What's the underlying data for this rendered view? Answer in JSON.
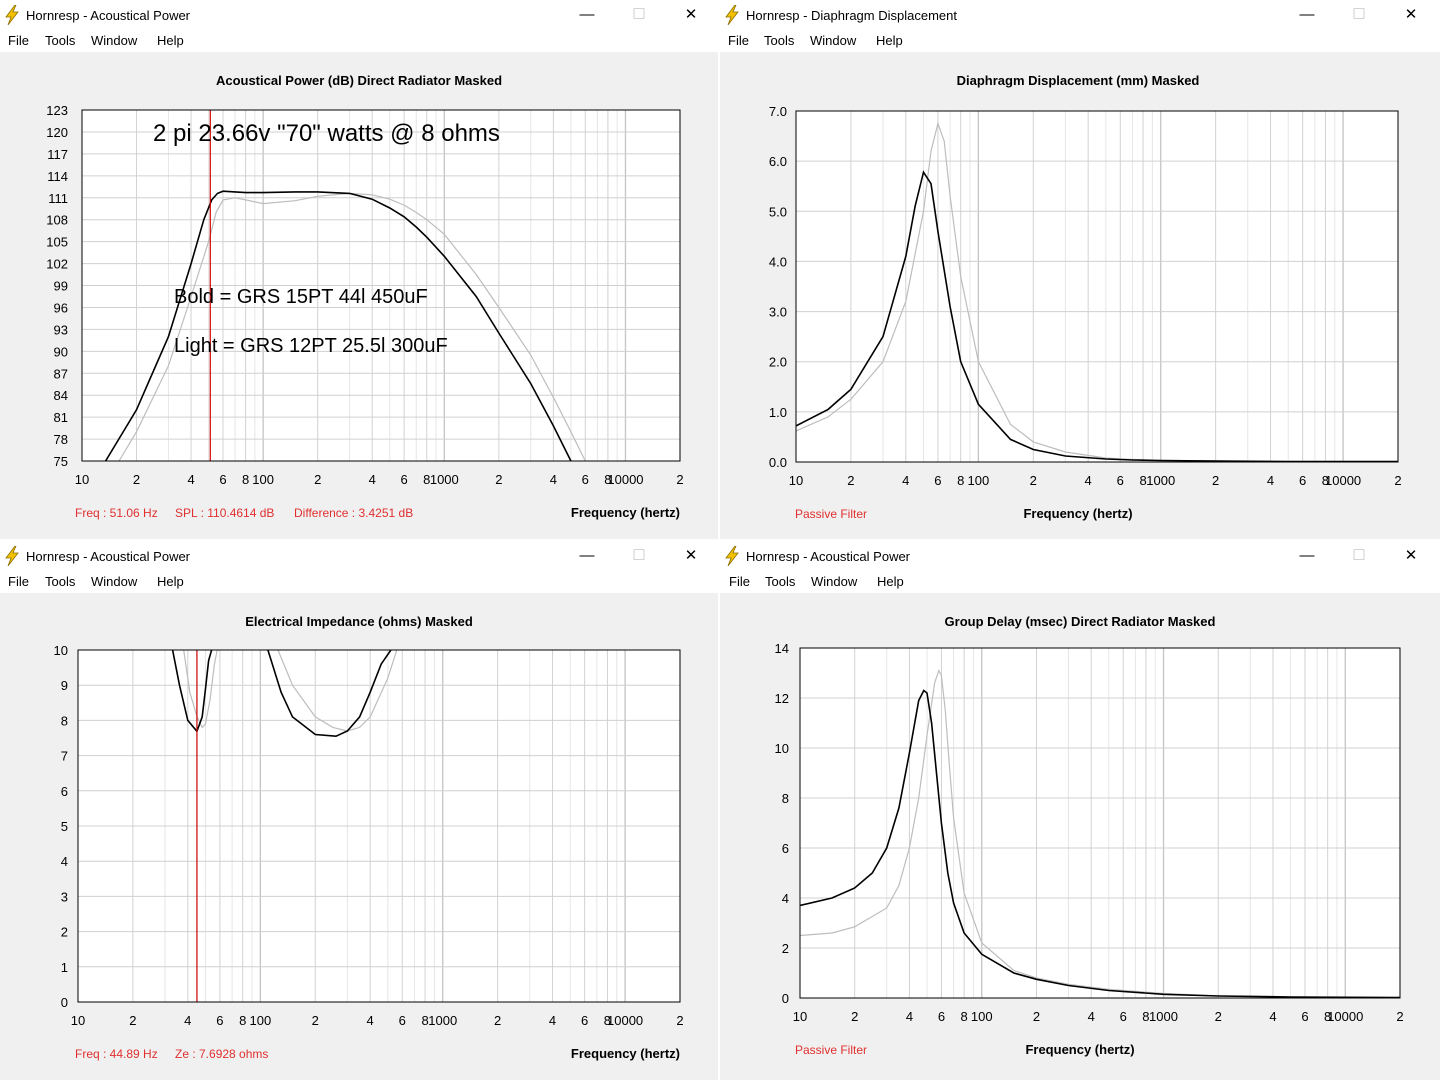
{
  "windows": [
    {
      "title": "Hornresp - Acoustical Power",
      "menu": [
        "File",
        "Tools",
        "Window",
        "Help"
      ],
      "heading": "Acoustical Power (dB)   Direct Radiator   Masked",
      "status": [
        "Freq : 51.06 Hz",
        "SPL : 110.4614 dB",
        "Difference : 3.4251 dB"
      ],
      "x_label": "Frequency (hertz)",
      "annotations": [
        "2 pi  23.66v  \"70\" watts @ 8 ohms",
        "Bold = GRS 15PT 44l 450uF",
        "Light = GRS 12PT 25.5l 300uF"
      ]
    },
    {
      "title": "Hornresp - Diaphragm Displacement",
      "menu": [
        "File",
        "Tools",
        "Window",
        "Help"
      ],
      "heading": "Diaphragm Displacement (mm)   Masked",
      "status": [
        "Passive Filter"
      ],
      "x_label": "Frequency (hertz)",
      "annotations": []
    },
    {
      "title": "Hornresp - Acoustical Power",
      "menu": [
        "File",
        "Tools",
        "Window",
        "Help"
      ],
      "heading": "Electrical Impedance (ohms)   Masked",
      "status": [
        "Freq : 44.89 Hz",
        "Ze : 7.6928 ohms"
      ],
      "x_label": "Frequency (hertz)",
      "annotations": []
    },
    {
      "title": "Hornresp - Acoustical Power",
      "menu": [
        "File",
        "Tools",
        "Window",
        "Help"
      ],
      "heading": "Group Delay (msec)   Direct Radiator   Masked",
      "status": [
        "Passive Filter"
      ],
      "x_label": "Frequency (hertz)",
      "annotations": []
    }
  ],
  "window_controls": {
    "minimize": "—",
    "maximize": "☐",
    "close": "✕"
  },
  "colors": {
    "bold_trace": "#000000",
    "light_trace": "#bdbdbd",
    "marker": "#cc0000",
    "status_text": "#e03030"
  },
  "x_tick_labels": [
    "10",
    "2",
    "4",
    "6",
    "8",
    "100",
    "2",
    "4",
    "6",
    "8",
    "1000",
    "2",
    "4",
    "6",
    "8",
    "10000",
    "2"
  ],
  "chart_data": [
    {
      "type": "line",
      "title": "Acoustical Power (dB)   Direct Radiator   Masked",
      "xlabel": "Frequency (hertz)",
      "ylabel": "",
      "x_scale": "log",
      "xlim": [
        10,
        20000
      ],
      "ylim": [
        75,
        123
      ],
      "y_ticks": [
        "123",
        "120",
        "117",
        "114",
        "111",
        "108",
        "105",
        "102",
        "99",
        "96",
        "93",
        "90",
        "87",
        "84",
        "81",
        "78",
        "75"
      ],
      "marker_x": 51.06,
      "series": [
        {
          "name": "Bold = GRS 15PT 44l 450uF",
          "style": "bold",
          "x": [
            13.5,
            20,
            30,
            40,
            47,
            52,
            56,
            60,
            70,
            80,
            100,
            150,
            200,
            300,
            400,
            500,
            600,
            700,
            800,
            1000,
            1500,
            2000,
            3000,
            4000,
            5000
          ],
          "y": [
            75,
            82,
            92,
            102,
            108,
            110.7,
            111.6,
            111.9,
            111.8,
            111.7,
            111.7,
            111.8,
            111.8,
            111.6,
            110.8,
            109.6,
            108.4,
            107,
            105.6,
            103,
            97.5,
            92.5,
            85.6,
            79.8,
            75
          ]
        },
        {
          "name": "Light = GRS 12PT 25.5l 300uF",
          "style": "light",
          "x": [
            16,
            20,
            30,
            40,
            50,
            55,
            60,
            70,
            80,
            100,
            150,
            200,
            300,
            400,
            500,
            600,
            700,
            800,
            1000,
            1500,
            2000,
            3000,
            4000,
            5000,
            6000
          ],
          "y": [
            75,
            79,
            88,
            97.5,
            105,
            109,
            110.7,
            111,
            110.7,
            110.2,
            110.6,
            111.2,
            111.6,
            111.4,
            110.8,
            110,
            109,
            108,
            106,
            100.5,
            96,
            89.5,
            83.7,
            79,
            75
          ]
        }
      ]
    },
    {
      "type": "line",
      "title": "Diaphragm Displacement (mm)   Masked",
      "xlabel": "Frequency (hertz)",
      "ylabel": "",
      "x_scale": "log",
      "xlim": [
        10,
        20000
      ],
      "ylim": [
        0,
        7
      ],
      "y_ticks": [
        "7.0",
        "6.0",
        "5.0",
        "4.0",
        "3.0",
        "2.0",
        "1.0",
        "0.0"
      ],
      "series": [
        {
          "name": "Bold = GRS 15PT 44l 450uF",
          "style": "bold",
          "x": [
            10,
            15,
            20,
            30,
            40,
            45,
            50,
            55,
            60,
            70,
            80,
            100,
            150,
            200,
            300,
            500,
            700,
            1000,
            2000,
            5000,
            10000,
            20000
          ],
          "y": [
            0.72,
            1.05,
            1.45,
            2.5,
            4.1,
            5.1,
            5.78,
            5.55,
            4.6,
            3.1,
            2.0,
            1.15,
            0.45,
            0.25,
            0.12,
            0.06,
            0.04,
            0.03,
            0.02,
            0.01,
            0.01,
            0.01
          ]
        },
        {
          "name": "Light = GRS 12PT 25.5l 300uF",
          "style": "light",
          "x": [
            10,
            15,
            20,
            30,
            40,
            50,
            55,
            60,
            65,
            70,
            80,
            100,
            150,
            200,
            300,
            500,
            700,
            1000,
            2000,
            5000,
            10000,
            20000
          ],
          "y": [
            0.62,
            0.9,
            1.25,
            2.0,
            3.2,
            5.0,
            6.2,
            6.75,
            6.4,
            5.3,
            3.7,
            2.0,
            0.75,
            0.4,
            0.2,
            0.08,
            0.05,
            0.03,
            0.02,
            0.01,
            0.01,
            0.01
          ]
        }
      ]
    },
    {
      "type": "line",
      "title": "Electrical Impedance (ohms)   Masked",
      "xlabel": "Frequency (hertz)",
      "ylabel": "",
      "x_scale": "log",
      "xlim": [
        10,
        20000
      ],
      "ylim": [
        0,
        10
      ],
      "y_ticks": [
        "10",
        "9",
        "8",
        "7",
        "6",
        "5",
        "4",
        "3",
        "2",
        "1",
        "0"
      ],
      "marker_x": 44.89,
      "series": [
        {
          "name": "Bold = GRS 15PT 44l 450uF",
          "style": "bold",
          "x": [
            33,
            36,
            40,
            44.9,
            48,
            50,
            52,
            54,
            null,
            110,
            130,
            150,
            200,
            260,
            300,
            350,
            400,
            460,
            520
          ],
          "y": [
            10,
            9,
            8,
            7.69,
            8.1,
            8.9,
            9.7,
            10,
            null,
            10,
            8.8,
            8.1,
            7.6,
            7.55,
            7.7,
            8.1,
            8.8,
            9.6,
            10
          ]
        },
        {
          "name": "Light = GRS 12PT 25.5l 300uF",
          "style": "light",
          "x": [
            38,
            41,
            45,
            48,
            50,
            53,
            56,
            58,
            null,
            125,
            150,
            200,
            250,
            300,
            350,
            400,
            500,
            560
          ],
          "y": [
            10,
            8.8,
            8.1,
            7.8,
            7.9,
            8.6,
            9.6,
            10,
            null,
            10,
            9,
            8.1,
            7.8,
            7.7,
            7.8,
            8.1,
            9.2,
            10
          ]
        }
      ]
    },
    {
      "type": "line",
      "title": "Group Delay (msec)   Direct Radiator   Masked",
      "xlabel": "Frequency (hertz)",
      "ylabel": "",
      "x_scale": "log",
      "xlim": [
        10,
        20000
      ],
      "ylim": [
        0,
        14
      ],
      "y_ticks": [
        "14",
        "12",
        "10",
        "8",
        "6",
        "4",
        "2",
        "0"
      ],
      "series": [
        {
          "name": "Bold = GRS 15PT 44l 450uF",
          "style": "bold",
          "x": [
            10,
            15,
            20,
            25,
            30,
            35,
            40,
            45,
            48,
            50,
            53,
            56,
            60,
            65,
            70,
            80,
            100,
            150,
            200,
            300,
            500,
            1000,
            2000,
            5000,
            20000
          ],
          "y": [
            3.7,
            4.0,
            4.4,
            5.0,
            6.0,
            7.6,
            9.8,
            11.9,
            12.3,
            12.2,
            11.0,
            9.2,
            7.0,
            5.0,
            3.8,
            2.6,
            1.75,
            1.0,
            0.75,
            0.5,
            0.3,
            0.15,
            0.08,
            0.04,
            0.02
          ]
        },
        {
          "name": "Light = GRS 12PT 25.5l 300uF",
          "style": "light",
          "x": [
            10,
            15,
            20,
            30,
            35,
            40,
            45,
            50,
            55,
            58,
            60,
            63,
            66,
            70,
            80,
            100,
            150,
            200,
            300,
            500,
            1000,
            2000,
            5000,
            20000
          ],
          "y": [
            2.5,
            2.6,
            2.85,
            3.6,
            4.5,
            6.0,
            8.0,
            10.5,
            12.6,
            13.1,
            12.9,
            11.5,
            9.5,
            7.2,
            4.2,
            2.2,
            1.1,
            0.8,
            0.55,
            0.35,
            0.18,
            0.09,
            0.04,
            0.02
          ]
        }
      ]
    }
  ]
}
